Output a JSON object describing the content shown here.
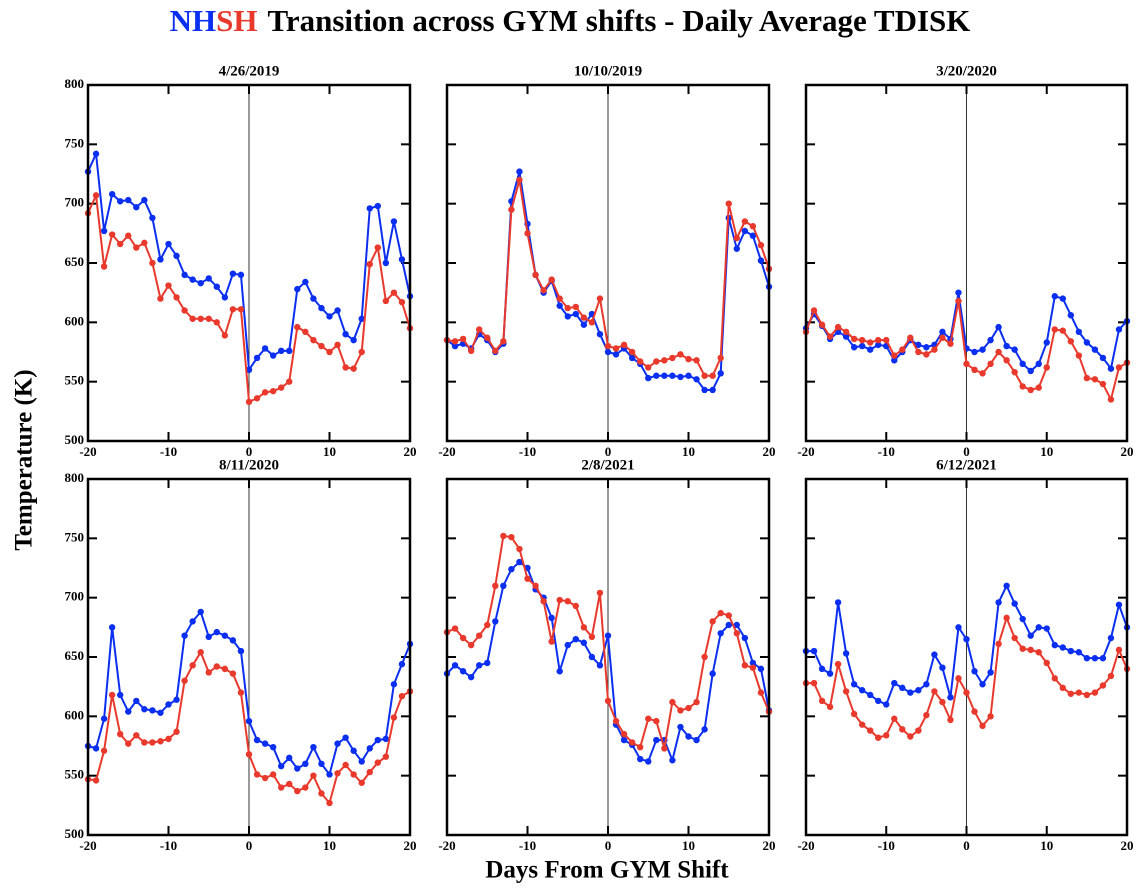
{
  "title": "Transition across GYM shifts - Daily Average TDISK",
  "legend": [
    {
      "name": "NH",
      "color": "#0a2ff0"
    },
    {
      "name": "SH",
      "color": "#e8392c"
    }
  ],
  "xlabel": "Days From GYM Shift",
  "ylabel": "Temperature (K)",
  "chart_data": [
    {
      "type": "line",
      "title": "4/26/2019",
      "x": [
        -20,
        -19,
        -18,
        -17,
        -16,
        -15,
        -14,
        -13,
        -12,
        -11,
        -10,
        -9,
        -8,
        -7,
        -6,
        -5,
        -4,
        -3,
        -2,
        -1,
        0,
        1,
        2,
        3,
        4,
        5,
        6,
        7,
        8,
        9,
        10,
        11,
        12,
        13,
        14,
        15,
        16,
        17,
        18,
        19,
        20
      ],
      "xlim": [
        -20,
        20
      ],
      "xticks": [
        -20,
        -10,
        0,
        10,
        20
      ],
      "ylim": [
        500,
        800
      ],
      "yticks": [
        500,
        550,
        600,
        650,
        700,
        750,
        800
      ],
      "series": [
        {
          "color": "#0a2ff0",
          "values": [
            727,
            742,
            677,
            708,
            702,
            703,
            697,
            703,
            688,
            653,
            666,
            656,
            640,
            636,
            633,
            637,
            630,
            621,
            641,
            640,
            560,
            570,
            578,
            572,
            576,
            576,
            628,
            634,
            620,
            612,
            605,
            610,
            590,
            585,
            603,
            696,
            698,
            650,
            685,
            653,
            622
          ]
        },
        {
          "color": "#e8392c",
          "values": [
            692,
            707,
            647,
            674,
            666,
            673,
            663,
            667,
            650,
            620,
            631,
            621,
            610,
            603,
            603,
            603,
            600,
            589,
            611,
            611,
            533,
            536,
            541,
            542,
            545,
            550,
            596,
            592,
            585,
            580,
            575,
            581,
            562,
            561,
            575,
            649,
            663,
            618,
            625,
            617,
            595
          ]
        }
      ]
    },
    {
      "type": "line",
      "title": "10/10/2019",
      "x": [
        -20,
        -19,
        -18,
        -17,
        -16,
        -15,
        -14,
        -13,
        -12,
        -11,
        -10,
        -9,
        -8,
        -7,
        -6,
        -5,
        -4,
        -3,
        -2,
        -1,
        0,
        1,
        2,
        3,
        4,
        5,
        6,
        7,
        8,
        9,
        10,
        11,
        12,
        13,
        14,
        15,
        16,
        17,
        18,
        19,
        20
      ],
      "xlim": [
        -20,
        20
      ],
      "xticks": [
        -20,
        -10,
        0,
        10,
        20
      ],
      "ylim": [
        500,
        800
      ],
      "yticks": [
        500,
        550,
        600,
        650,
        700,
        750,
        800
      ],
      "series": [
        {
          "color": "#0a2ff0",
          "values": [
            585,
            580,
            582,
            578,
            590,
            585,
            575,
            582,
            702,
            727,
            683,
            640,
            625,
            635,
            614,
            605,
            607,
            598,
            607,
            590,
            575,
            573,
            578,
            570,
            565,
            553,
            555,
            555,
            555,
            554,
            555,
            552,
            543,
            543,
            557,
            688,
            662,
            677,
            673,
            652,
            630
          ]
        },
        {
          "color": "#e8392c",
          "values": [
            585,
            584,
            586,
            576,
            594,
            587,
            576,
            584,
            695,
            720,
            675,
            640,
            627,
            636,
            620,
            612,
            613,
            604,
            600,
            620,
            580,
            578,
            581,
            575,
            567,
            562,
            567,
            568,
            570,
            573,
            569,
            568,
            555,
            555,
            570,
            700,
            671,
            685,
            681,
            665,
            645
          ]
        }
      ]
    },
    {
      "type": "line",
      "title": "3/20/2020",
      "x": [
        -20,
        -19,
        -18,
        -17,
        -16,
        -15,
        -14,
        -13,
        -12,
        -11,
        -10,
        -9,
        -8,
        -7,
        -6,
        -5,
        -4,
        -3,
        -2,
        -1,
        0,
        1,
        2,
        3,
        4,
        5,
        6,
        7,
        8,
        9,
        10,
        11,
        12,
        13,
        14,
        15,
        16,
        17,
        18,
        19,
        20
      ],
      "xlim": [
        -20,
        20
      ],
      "xticks": [
        -20,
        -10,
        0,
        10,
        20
      ],
      "ylim": [
        500,
        800
      ],
      "yticks": [
        500,
        550,
        600,
        650,
        700,
        750,
        800
      ],
      "series": [
        {
          "color": "#0a2ff0",
          "values": [
            595,
            607,
            597,
            586,
            592,
            588,
            579,
            580,
            577,
            581,
            580,
            568,
            575,
            585,
            581,
            579,
            581,
            592,
            586,
            625,
            578,
            575,
            577,
            585,
            596,
            580,
            577,
            565,
            559,
            565,
            583,
            622,
            620,
            606,
            592,
            583,
            577,
            570,
            561,
            594,
            601
          ]
        },
        {
          "color": "#e8392c",
          "values": [
            592,
            610,
            598,
            588,
            596,
            592,
            586,
            585,
            583,
            585,
            585,
            572,
            577,
            587,
            575,
            573,
            577,
            587,
            582,
            618,
            565,
            560,
            557,
            565,
            575,
            568,
            558,
            546,
            543,
            545,
            562,
            594,
            593,
            584,
            572,
            553,
            552,
            548,
            535,
            562,
            566
          ]
        }
      ]
    },
    {
      "type": "line",
      "title": "8/11/2020",
      "x": [
        -20,
        -19,
        -18,
        -17,
        -16,
        -15,
        -14,
        -13,
        -12,
        -11,
        -10,
        -9,
        -8,
        -7,
        -6,
        -5,
        -4,
        -3,
        -2,
        -1,
        0,
        1,
        2,
        3,
        4,
        5,
        6,
        7,
        8,
        9,
        10,
        11,
        12,
        13,
        14,
        15,
        16,
        17,
        18,
        19,
        20
      ],
      "xlim": [
        -20,
        20
      ],
      "xticks": [
        -20,
        -10,
        0,
        10,
        20
      ],
      "ylim": [
        500,
        800
      ],
      "yticks": [
        500,
        550,
        600,
        650,
        700,
        750,
        800
      ],
      "series": [
        {
          "color": "#0a2ff0",
          "values": [
            575,
            573,
            598,
            675,
            618,
            604,
            613,
            606,
            605,
            603,
            610,
            614,
            668,
            680,
            688,
            667,
            671,
            668,
            664,
            655,
            596,
            580,
            577,
            574,
            558,
            565,
            556,
            560,
            574,
            560,
            551,
            577,
            582,
            571,
            562,
            573,
            580,
            581,
            627,
            644,
            661
          ]
        },
        {
          "color": "#e8392c",
          "values": [
            547,
            546,
            571,
            618,
            585,
            577,
            584,
            578,
            578,
            579,
            581,
            587,
            630,
            643,
            654,
            637,
            642,
            640,
            636,
            620,
            568,
            551,
            548,
            551,
            540,
            543,
            537,
            540,
            550,
            535,
            527,
            552,
            559,
            551,
            544,
            553,
            561,
            566,
            599,
            617,
            621
          ]
        }
      ]
    },
    {
      "type": "line",
      "title": "2/8/2021",
      "x": [
        -20,
        -19,
        -18,
        -17,
        -16,
        -15,
        -14,
        -13,
        -12,
        -11,
        -10,
        -9,
        -8,
        -7,
        -6,
        -5,
        -4,
        -3,
        -2,
        -1,
        0,
        1,
        2,
        3,
        4,
        5,
        6,
        7,
        8,
        9,
        10,
        11,
        12,
        13,
        14,
        15,
        16,
        17,
        18,
        19,
        20
      ],
      "xlim": [
        -20,
        20
      ],
      "xticks": [
        -20,
        -10,
        0,
        10,
        20
      ],
      "ylim": [
        500,
        800
      ],
      "yticks": [
        500,
        550,
        600,
        650,
        700,
        750,
        800
      ],
      "series": [
        {
          "color": "#0a2ff0",
          "values": [
            636,
            643,
            638,
            633,
            643,
            645,
            680,
            710,
            724,
            730,
            725,
            707,
            700,
            683,
            638,
            660,
            665,
            662,
            650,
            643,
            668,
            593,
            580,
            576,
            564,
            562,
            580,
            580,
            563,
            591,
            583,
            580,
            589,
            636,
            670,
            677,
            677,
            666,
            645,
            640,
            605
          ]
        },
        {
          "color": "#e8392c",
          "values": [
            671,
            674,
            666,
            660,
            668,
            677,
            710,
            752,
            751,
            741,
            716,
            710,
            697,
            663,
            698,
            697,
            693,
            675,
            667,
            704,
            613,
            596,
            585,
            578,
            574,
            598,
            596,
            573,
            612,
            605,
            607,
            612,
            650,
            680,
            687,
            685,
            670,
            643,
            641,
            620,
            604
          ]
        }
      ]
    },
    {
      "type": "line",
      "title": "6/12/2021",
      "x": [
        -20,
        -19,
        -18,
        -17,
        -16,
        -15,
        -14,
        -13,
        -12,
        -11,
        -10,
        -9,
        -8,
        -7,
        -6,
        -5,
        -4,
        -3,
        -2,
        -1,
        0,
        1,
        2,
        3,
        4,
        5,
        6,
        7,
        8,
        9,
        10,
        11,
        12,
        13,
        14,
        15,
        16,
        17,
        18,
        19,
        20
      ],
      "xlim": [
        -20,
        20
      ],
      "xticks": [
        -20,
        -10,
        0,
        10,
        20
      ],
      "ylim": [
        500,
        800
      ],
      "yticks": [
        500,
        550,
        600,
        650,
        700,
        750,
        800
      ],
      "series": [
        {
          "color": "#0a2ff0",
          "values": [
            655,
            655,
            640,
            636,
            696,
            653,
            627,
            622,
            618,
            613,
            610,
            628,
            624,
            620,
            622,
            627,
            652,
            641,
            616,
            675,
            665,
            638,
            627,
            637,
            696,
            710,
            695,
            682,
            668,
            675,
            674,
            660,
            658,
            655,
            654,
            649,
            649,
            649,
            666,
            694,
            675
          ]
        },
        {
          "color": "#e8392c",
          "values": [
            628,
            628,
            613,
            608,
            644,
            621,
            602,
            593,
            588,
            582,
            584,
            598,
            589,
            583,
            588,
            601,
            621,
            612,
            597,
            632,
            620,
            604,
            592,
            600,
            661,
            683,
            666,
            657,
            656,
            654,
            645,
            632,
            624,
            619,
            620,
            618,
            620,
            626,
            634,
            656,
            640
          ]
        }
      ]
    }
  ]
}
